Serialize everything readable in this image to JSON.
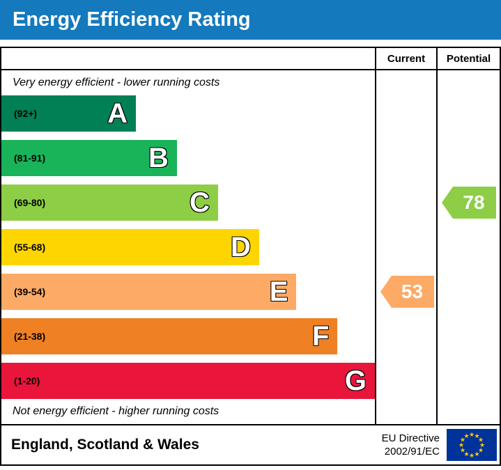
{
  "title": "Energy Efficiency Rating",
  "colors": {
    "header": "#1479bd",
    "border": "#000000"
  },
  "columns": {
    "current": "Current",
    "potential": "Potential"
  },
  "notes": {
    "top": "Very energy efficient - lower running costs",
    "bottom": "Not energy efficient - higher running costs"
  },
  "bands": [
    {
      "letter": "A",
      "range": "(92+)",
      "color": "#008054",
      "width_pct": 36
    },
    {
      "letter": "B",
      "range": "(81-91)",
      "color": "#19b459",
      "width_pct": 47
    },
    {
      "letter": "C",
      "range": "(69-80)",
      "color": "#8dce46",
      "width_pct": 58
    },
    {
      "letter": "D",
      "range": "(55-68)",
      "color": "#ffd500",
      "width_pct": 69
    },
    {
      "letter": "E",
      "range": "(39-54)",
      "color": "#fcaa65",
      "width_pct": 79
    },
    {
      "letter": "F",
      "range": "(21-38)",
      "color": "#ef8023",
      "width_pct": 90
    },
    {
      "letter": "G",
      "range": "(1-20)",
      "color": "#e9153b",
      "width_pct": 100
    }
  ],
  "ratings": {
    "current": {
      "value": "53",
      "band": "E",
      "color": "#fcaa65"
    },
    "potential": {
      "value": "78",
      "band": "C",
      "color": "#8dce46"
    }
  },
  "footer": {
    "region": "England, Scotland & Wales",
    "directive": [
      "EU Directive",
      "2002/91/EC"
    ],
    "flag": {
      "background": "#003399",
      "stars": "#ffcc00"
    }
  },
  "chart_data": {
    "type": "bar",
    "title": "Energy Efficiency Rating",
    "categories": [
      "A (92+)",
      "B (81-91)",
      "C (69-80)",
      "D (55-68)",
      "E (39-54)",
      "F (21-38)",
      "G (1-20)"
    ],
    "values": [
      36,
      47,
      58,
      69,
      79,
      90,
      100
    ],
    "value_unit": "relative bar width, percent of band panel",
    "band_colors": [
      "#008054",
      "#19b459",
      "#8dce46",
      "#ffd500",
      "#fcaa65",
      "#ef8023",
      "#e9153b"
    ],
    "markers": [
      {
        "name": "Current",
        "value": 53,
        "band": "E"
      },
      {
        "name": "Potential",
        "value": 78,
        "band": "C"
      }
    ],
    "annotations": [
      "Very energy efficient - lower running costs",
      "Not energy efficient - higher running costs"
    ],
    "footer": "England, Scotland & Wales — EU Directive 2002/91/EC"
  }
}
